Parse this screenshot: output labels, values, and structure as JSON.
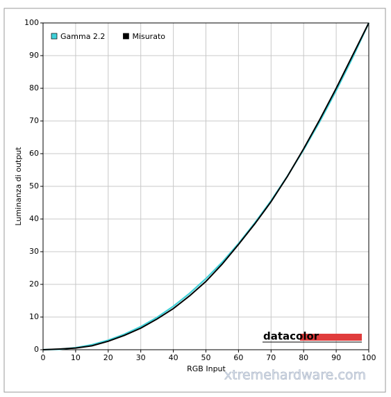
{
  "chart_data": {
    "type": "line",
    "xlabel": "RGB Input",
    "ylabel": "Luminanza di output",
    "x": [
      0,
      5,
      10,
      15,
      20,
      25,
      30,
      35,
      40,
      45,
      50,
      55,
      60,
      65,
      70,
      75,
      80,
      85,
      90,
      95,
      100
    ],
    "series": [
      {
        "name": "Gamma 2.2",
        "color": "#40d0d8",
        "values": [
          0,
          0.14,
          0.63,
          1.53,
          2.91,
          4.75,
          7.07,
          9.9,
          13.3,
          17.26,
          21.76,
          26.8,
          32.5,
          38.8,
          45.6,
          53.1,
          61.2,
          69.9,
          79.3,
          89.3,
          100
        ]
      },
      {
        "name": "Misurato",
        "color": "#000000",
        "values": [
          0,
          0.2,
          0.5,
          1.2,
          2.6,
          4.4,
          6.6,
          9.4,
          12.6,
          16.5,
          20.9,
          26.2,
          32.2,
          38.5,
          45.3,
          53.0,
          61.5,
          70.5,
          80.0,
          90.0,
          100
        ]
      }
    ],
    "xlim": [
      0,
      100
    ],
    "xticks": [
      0,
      10,
      20,
      30,
      40,
      50,
      60,
      70,
      80,
      90,
      100
    ],
    "ylim": [
      0,
      100
    ],
    "yticks": [
      0,
      10,
      20,
      30,
      40,
      50,
      60,
      70,
      80,
      90,
      100
    ],
    "grid": true,
    "legend": "top-left",
    "logo": "datacolor",
    "watermark": "xtremehardware.com"
  }
}
